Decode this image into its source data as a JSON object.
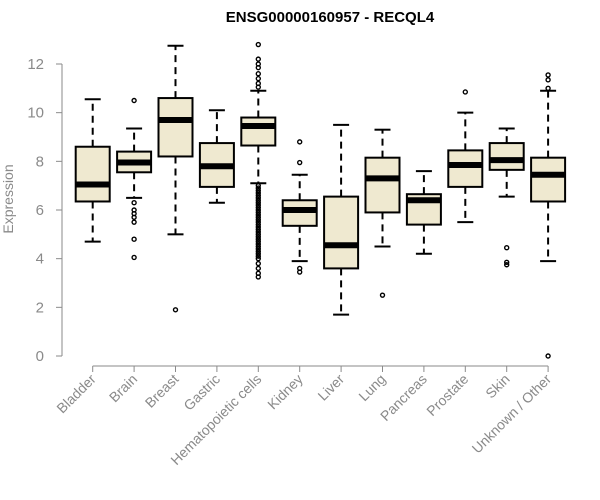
{
  "chart_data": {
    "type": "boxplot",
    "title": "ENSG00000160957 - RECQL4",
    "xlabel": "",
    "ylabel": "Expression",
    "ylim": [
      0,
      12.5
    ],
    "yticks": [
      0,
      2,
      4,
      6,
      8,
      10,
      12
    ],
    "box_fill": "#efe9d0",
    "categories": [
      "Bladder",
      "Brain",
      "Breast",
      "Gastric",
      "Hematopoietic cells",
      "Kidney",
      "Liver",
      "Lung",
      "Pancreas",
      "Prostate",
      "Skin",
      "Unknown / Other"
    ],
    "boxes": [
      {
        "whisker_low": 4.7,
        "q1": 6.35,
        "median": 7.05,
        "q3": 8.6,
        "whisker_high": 10.55,
        "outliers": []
      },
      {
        "whisker_low": 6.5,
        "q1": 7.55,
        "median": 7.95,
        "q3": 8.4,
        "whisker_high": 9.35,
        "outliers": [
          10.5,
          6.3,
          6.0,
          5.85,
          5.7,
          5.5,
          4.8,
          4.05
        ]
      },
      {
        "whisker_low": 5.0,
        "q1": 8.2,
        "median": 9.7,
        "q3": 10.6,
        "whisker_high": 12.75,
        "outliers": [
          1.9
        ]
      },
      {
        "whisker_low": 6.3,
        "q1": 6.95,
        "median": 7.8,
        "q3": 8.75,
        "whisker_high": 10.1,
        "outliers": []
      },
      {
        "whisker_low": 7.1,
        "q1": 8.65,
        "median": 9.45,
        "q3": 9.8,
        "whisker_high": 10.9,
        "outliers": [
          12.8,
          12.2,
          12.0,
          11.85,
          11.6,
          11.4,
          11.2,
          11.05,
          7.0,
          6.9,
          6.8,
          6.7,
          6.6,
          6.5,
          6.4,
          6.3,
          6.2,
          6.1,
          6.0,
          5.9,
          5.8,
          5.7,
          5.6,
          5.5,
          5.4,
          5.3,
          5.2,
          5.1,
          5.0,
          4.9,
          4.8,
          4.7,
          4.6,
          4.5,
          4.4,
          4.3,
          4.2,
          4.1,
          4.0,
          3.8,
          3.6,
          3.4,
          3.25
        ]
      },
      {
        "whisker_low": 3.9,
        "q1": 5.35,
        "median": 6.0,
        "q3": 6.4,
        "whisker_high": 7.45,
        "outliers": [
          8.8,
          7.95,
          3.6,
          3.45
        ]
      },
      {
        "whisker_low": 1.7,
        "q1": 3.6,
        "median": 4.55,
        "q3": 6.55,
        "whisker_high": 9.5,
        "outliers": []
      },
      {
        "whisker_low": 4.5,
        "q1": 5.9,
        "median": 7.3,
        "q3": 8.15,
        "whisker_high": 9.3,
        "outliers": [
          2.5
        ]
      },
      {
        "whisker_low": 4.2,
        "q1": 5.4,
        "median": 6.4,
        "q3": 6.65,
        "whisker_high": 7.6,
        "outliers": []
      },
      {
        "whisker_low": 5.5,
        "q1": 6.95,
        "median": 7.85,
        "q3": 8.45,
        "whisker_high": 10.0,
        "outliers": [
          10.85
        ]
      },
      {
        "whisker_low": 6.55,
        "q1": 7.65,
        "median": 8.05,
        "q3": 8.75,
        "whisker_high": 9.35,
        "outliers": [
          4.45,
          3.85,
          3.75
        ]
      },
      {
        "whisker_low": 3.9,
        "q1": 6.35,
        "median": 7.45,
        "q3": 8.15,
        "whisker_high": 10.9,
        "outliers": [
          11.55,
          11.35,
          11.0,
          0.0
        ]
      }
    ]
  }
}
